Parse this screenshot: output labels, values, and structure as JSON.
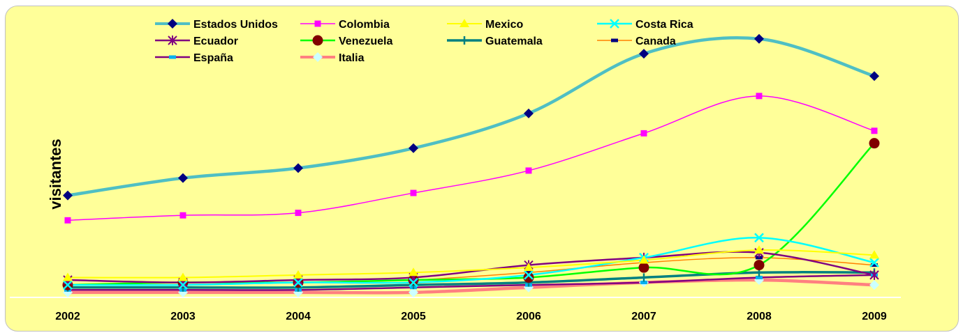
{
  "chart_data": {
    "type": "line",
    "title": "",
    "xlabel": "",
    "ylabel": "visitantes",
    "categories": [
      "2002",
      "2003",
      "2004",
      "2005",
      "2006",
      "2007",
      "2008",
      "2009"
    ],
    "ylim": [
      0,
      100
    ],
    "grid": false,
    "legend_position": "top",
    "background": "#ffff99",
    "series": [
      {
        "name": "Estados Unidos",
        "values": [
          41,
          48,
          52,
          60,
          74,
          98,
          104,
          89
        ],
        "color": "#4fbfc4",
        "marker": "diamond",
        "marker_color": "#000080",
        "width": 4.5
      },
      {
        "name": "Colombia",
        "values": [
          31,
          33,
          34,
          42,
          51,
          66,
          81,
          67
        ],
        "color": "#ff00ff",
        "marker": "square",
        "marker_color": "#ff00ff",
        "width": 1.5
      },
      {
        "name": "Mexico",
        "values": [
          8,
          8,
          9,
          10,
          12,
          15,
          19,
          17
        ],
        "color": "#ffff00",
        "marker": "triangle",
        "marker_color": "#ffff00",
        "width": 2
      },
      {
        "name": "Costa Rica",
        "values": [
          5,
          5,
          6,
          6,
          9,
          16,
          24,
          14
        ],
        "color": "#00ffff",
        "marker": "x",
        "marker_color": "#00ffff",
        "width": 2.5
      },
      {
        "name": "Ecuador",
        "values": [
          7,
          6,
          7,
          8,
          13,
          16,
          18,
          9
        ],
        "color": "#800080",
        "marker": "asterisk",
        "marker_color": "#800080",
        "width": 2.5
      },
      {
        "name": "Venezuela",
        "values": [
          5,
          6,
          6,
          7,
          8,
          12,
          13,
          62
        ],
        "color": "#00ff00",
        "marker": "circle",
        "marker_color": "#800000",
        "width": 2.5
      },
      {
        "name": "Guatemala",
        "values": [
          4,
          4,
          4,
          5,
          6,
          8,
          10,
          10
        ],
        "color": "#008080",
        "marker": "plus",
        "marker_color": "#008080",
        "width": 3.5
      },
      {
        "name": "Canada",
        "values": [
          5,
          5,
          6,
          7,
          10,
          14,
          16,
          13
        ],
        "color": "#ff8000",
        "marker": "dash",
        "marker_color": "#000080",
        "width": 1.5
      },
      {
        "name": "España",
        "values": [
          3,
          3,
          3,
          4,
          5,
          6,
          8,
          9
        ],
        "color": "#800080",
        "marker": "dash",
        "marker_color": "#00b0f0",
        "width": 2.5
      },
      {
        "name": "Italia",
        "values": [
          2,
          2,
          2,
          2,
          4,
          6,
          7,
          5
        ],
        "color": "#ff8080",
        "marker": "diamond",
        "marker_color": "#ccffff",
        "width": 4.5
      }
    ]
  }
}
